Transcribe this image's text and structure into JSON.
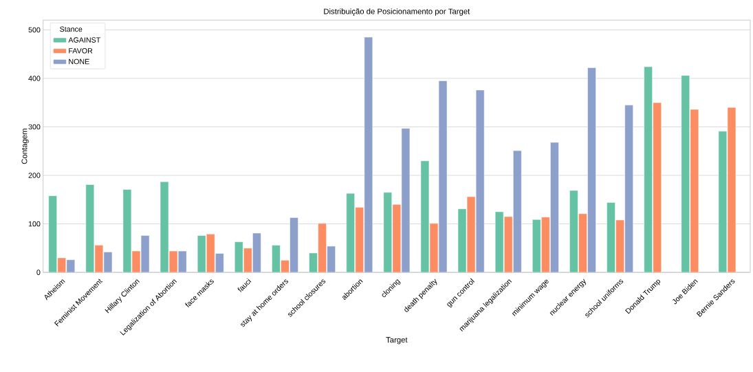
{
  "chart_data": {
    "type": "bar",
    "title": "Distribuição de Posicionamento por Target",
    "xlabel": "Target",
    "ylabel": "Contagem",
    "legend_title": "Stance",
    "categories": [
      "Atheism",
      "Feminist Movement",
      "Hillary Clinton",
      "Legalization of Abortion",
      "face masks",
      "fauci",
      "stay at home orders",
      "school closures",
      "abortion",
      "cloning",
      "death penalty",
      "gun control",
      "marijuana legalization",
      "minimum wage",
      "nuclear energy",
      "school uniforms",
      "Donald Trump",
      "Joe Biden",
      "Bernie Sanders"
    ],
    "series": [
      {
        "name": "AGAINST",
        "color": "#66c2a5",
        "values": [
          158,
          181,
          171,
          187,
          76,
          63,
          56,
          40,
          163,
          165,
          230,
          131,
          125,
          109,
          169,
          144,
          424,
          406,
          291
        ]
      },
      {
        "name": "FAVOR",
        "color": "#fc8d62",
        "values": [
          30,
          56,
          44,
          44,
          79,
          50,
          25,
          101,
          134,
          140,
          101,
          156,
          115,
          114,
          121,
          108,
          350,
          336,
          340
        ]
      },
      {
        "name": "NONE",
        "color": "#8da0cb",
        "values": [
          26,
          42,
          76,
          44,
          39,
          81,
          113,
          54,
          485,
          297,
          395,
          376,
          251,
          268,
          422,
          345,
          null,
          null,
          null
        ]
      }
    ],
    "ylim": [
      0,
      520
    ],
    "yticks": [
      0,
      100,
      200,
      300,
      400,
      500
    ],
    "grid": "y",
    "legend": "top left"
  }
}
